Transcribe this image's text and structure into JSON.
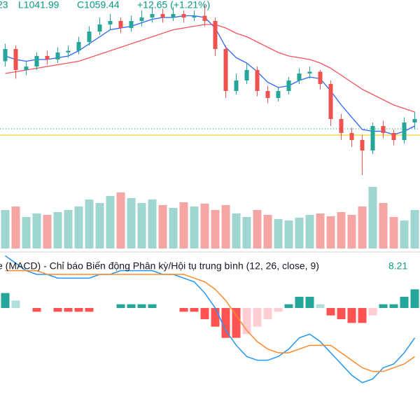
{
  "chart_data": [
    {
      "type": "candlestick",
      "ohlc_legend": [
        "23",
        "L1041.99",
        "C1059.44",
        "+12.65 (+1.21%)"
      ],
      "ylim": [
        1020,
        1120
      ],
      "up_color": "#26a69a",
      "down_color": "#ef5350",
      "open": [
        1085,
        1092,
        1080,
        1082,
        1088,
        1086,
        1090,
        1091,
        1096,
        1102,
        1106,
        1108,
        1104,
        1108,
        1110,
        1112,
        1110,
        1112,
        1110,
        1111,
        1108,
        1092,
        1068,
        1074,
        1080,
        1068,
        1064,
        1068,
        1074,
        1078,
        1079,
        1072,
        1052,
        1044,
        1040,
        1034,
        1048,
        1044,
        1040,
        1050
      ],
      "high": [
        1095,
        1094,
        1085,
        1090,
        1091,
        1093,
        1094,
        1099,
        1105,
        1110,
        1112,
        1110,
        1111,
        1114,
        1116,
        1115,
        1116,
        1114,
        1114,
        1117,
        1110,
        1094,
        1078,
        1084,
        1082,
        1071,
        1070,
        1076,
        1081,
        1082,
        1080,
        1074,
        1055,
        1047,
        1043,
        1050,
        1051,
        1046,
        1053,
        1056
      ],
      "low": [
        1082,
        1075,
        1077,
        1080,
        1083,
        1084,
        1087,
        1089,
        1094,
        1100,
        1103,
        1101,
        1102,
        1105,
        1107,
        1107,
        1108,
        1107,
        1108,
        1105,
        1088,
        1064,
        1066,
        1072,
        1065,
        1061,
        1062,
        1066,
        1072,
        1075,
        1069,
        1048,
        1040,
        1036,
        1020,
        1032,
        1041,
        1037,
        1038,
        1046
      ],
      "close": [
        1092,
        1080,
        1082,
        1088,
        1086,
        1090,
        1091,
        1096,
        1102,
        1106,
        1108,
        1104,
        1108,
        1110,
        1112,
        1110,
        1112,
        1110,
        1111,
        1108,
        1092,
        1068,
        1074,
        1080,
        1068,
        1064,
        1068,
        1074,
        1078,
        1079,
        1072,
        1052,
        1044,
        1040,
        1034,
        1048,
        1044,
        1040,
        1050,
        1052
      ],
      "lines": [
        {
          "color": "#2962ff",
          "values": [
            1088,
            1086,
            1085,
            1086,
            1086,
            1087,
            1088,
            1091,
            1095,
            1099,
            1103,
            1104,
            1105,
            1107,
            1109,
            1110,
            1110,
            1111,
            1111,
            1110,
            1104,
            1093,
            1087,
            1084,
            1079,
            1073,
            1070,
            1071,
            1074,
            1076,
            1075,
            1068,
            1060,
            1053,
            1046,
            1045,
            1045,
            1043,
            1045,
            1048
          ]
        },
        {
          "color": "#f7525f",
          "values": [
            1078,
            1079,
            1080,
            1081,
            1082,
            1083,
            1084,
            1085,
            1087,
            1089,
            1091,
            1093,
            1095,
            1097,
            1099,
            1101,
            1103,
            1104,
            1105,
            1106,
            1106,
            1104,
            1101,
            1099,
            1096,
            1093,
            1090,
            1088,
            1087,
            1086,
            1084,
            1081,
            1077,
            1073,
            1069,
            1066,
            1063,
            1060,
            1058,
            1056
          ]
        }
      ],
      "hlines": [
        {
          "value": 1046.4,
          "color": "#26a69a",
          "style": "dotted"
        },
        {
          "value": 1042.8,
          "color": "#f2d024",
          "style": "solid"
        }
      ]
    },
    {
      "type": "volume",
      "ylim": [
        0,
        100
      ],
      "up_color": "#9fd6d0",
      "down_color": "#f5a5a3",
      "values": [
        55,
        60,
        45,
        50,
        48,
        52,
        55,
        60,
        70,
        65,
        75,
        80,
        72,
        65,
        70,
        62,
        58,
        66,
        60,
        64,
        55,
        62,
        50,
        45,
        55,
        48,
        42,
        40,
        44,
        48,
        50,
        46,
        52,
        48,
        60,
        88,
        65,
        45,
        40,
        55
      ]
    },
    {
      "type": "macd",
      "title": "e (MACD) - Chỉ báo Biến động Phân kỳ/Hội tụ trung bình (12, 26, close, 9)",
      "value_label": "8.21",
      "ylim": [
        -30,
        15
      ],
      "macd_color": "#2196f3",
      "signal_color": "#ff8a2b",
      "hist_colors": [
        "#26a69a",
        "#b2dfdb",
        "#ff5252",
        "#ffcdd2"
      ],
      "macd": [
        14,
        12,
        10,
        9,
        9,
        8,
        8,
        8,
        8,
        9,
        9,
        10,
        10,
        10,
        10,
        9,
        9,
        8,
        7,
        4,
        0,
        -6,
        -10,
        -13,
        -14,
        -14,
        -13,
        -11,
        -8,
        -7,
        -9,
        -12,
        -15,
        -18,
        -20,
        -19,
        -16,
        -15,
        -12,
        -8
      ],
      "signal": [
        10,
        10,
        10,
        10,
        9,
        9,
        9,
        9,
        9,
        9,
        9,
        9,
        9,
        9,
        9,
        9,
        9,
        9,
        8,
        7,
        5,
        2,
        -2,
        -6,
        -9,
        -11,
        -12,
        -12,
        -11,
        -10,
        -10,
        -10,
        -12,
        -14,
        -16,
        -17,
        -17,
        -16,
        -15,
        -13
      ],
      "histogram": [
        4,
        2,
        0,
        -1,
        0,
        -1,
        -1,
        -1,
        -1,
        0,
        0,
        1,
        1,
        1,
        1,
        0,
        0,
        -1,
        -1,
        -3,
        -5,
        -8,
        -8,
        -7,
        -5,
        -3,
        -1,
        1,
        3,
        3,
        1,
        -2,
        -3,
        -4,
        -4,
        -2,
        1,
        1,
        3,
        5
      ]
    }
  ]
}
